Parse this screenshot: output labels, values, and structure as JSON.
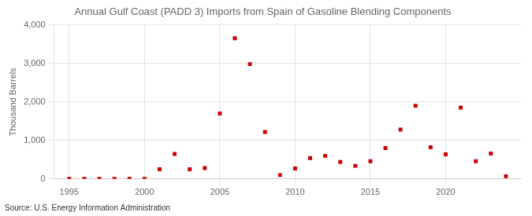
{
  "chart_data": {
    "type": "scatter",
    "title": "Annual Gulf Coast (PADD 3) Imports from Spain of Gasoline Blending Components",
    "ylabel": "Thousand Barrels",
    "source": "Source: U.S. Energy Information Administration",
    "x": [
      1995,
      1996,
      1997,
      1998,
      1999,
      2000,
      2001,
      2002,
      2003,
      2004,
      2005,
      2006,
      2007,
      2008,
      2009,
      2010,
      2011,
      2012,
      2013,
      2014,
      2015,
      2016,
      2017,
      2018,
      2019,
      2020,
      2021,
      2022,
      2023,
      2024
    ],
    "values": [
      0,
      0,
      0,
      0,
      0,
      0,
      250,
      650,
      250,
      280,
      1700,
      3650,
      2980,
      1220,
      100,
      270,
      540,
      600,
      440,
      340,
      460,
      800,
      1280,
      1900,
      820,
      640,
      1850,
      460,
      660,
      70
    ],
    "color": "#cc0000",
    "marker": "square",
    "xlim": [
      1994,
      2025
    ],
    "xticks": [
      1995,
      2000,
      2005,
      2010,
      2015,
      2020
    ],
    "ylim": [
      0,
      4000
    ],
    "yticks": [
      0,
      {
        "value": 1000,
        "label": "1,000"
      },
      {
        "value": 2000,
        "label": "2,000"
      },
      {
        "value": 3000,
        "label": "3,000"
      },
      {
        "value": 4000,
        "label": "4,000"
      }
    ],
    "grid": true
  }
}
